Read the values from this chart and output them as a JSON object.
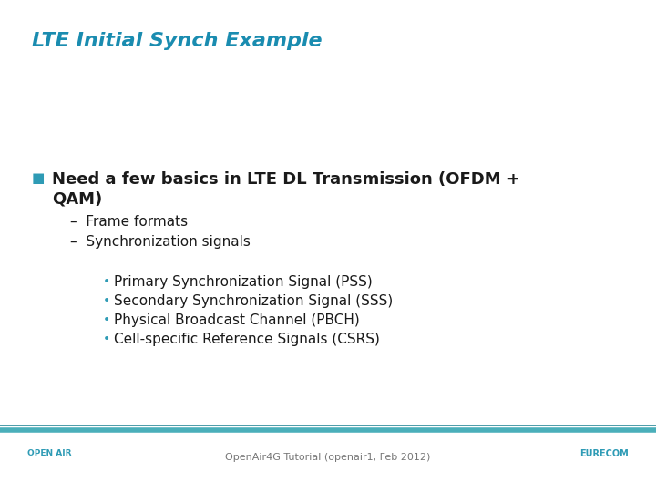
{
  "title": "LTE Initial Synch Example",
  "title_color": "#1A8CB0",
  "background_color": "#FFFFFF",
  "footer_text": "OpenAir4G Tutorial (openair1, Feb 2012)",
  "footer_line_color1": "#4AAFBA",
  "footer_line_color2": "#2E8B9A",
  "bullet_color": "#2E9BB5",
  "bullet_symbol": "■",
  "main_bullet_text_line1": "Need a few basics in LTE DL Transmission (OFDM +",
  "main_bullet_text_line2": "QAM)",
  "dash_items": [
    "Frame formats",
    "Synchronization signals"
  ],
  "sub_bullets": [
    "Primary Synchronization Signal (PSS)",
    "Secondary Synchronization Signal (SSS)",
    "Physical Broadcast Channel (PBCH)",
    "Cell-specific Reference Signals (CSRS)"
  ],
  "title_fontsize": 16,
  "main_bullet_fontsize": 13,
  "dash_fontsize": 11,
  "sub_bullet_fontsize": 11,
  "footer_fontsize": 8,
  "text_color": "#1A1A1A"
}
